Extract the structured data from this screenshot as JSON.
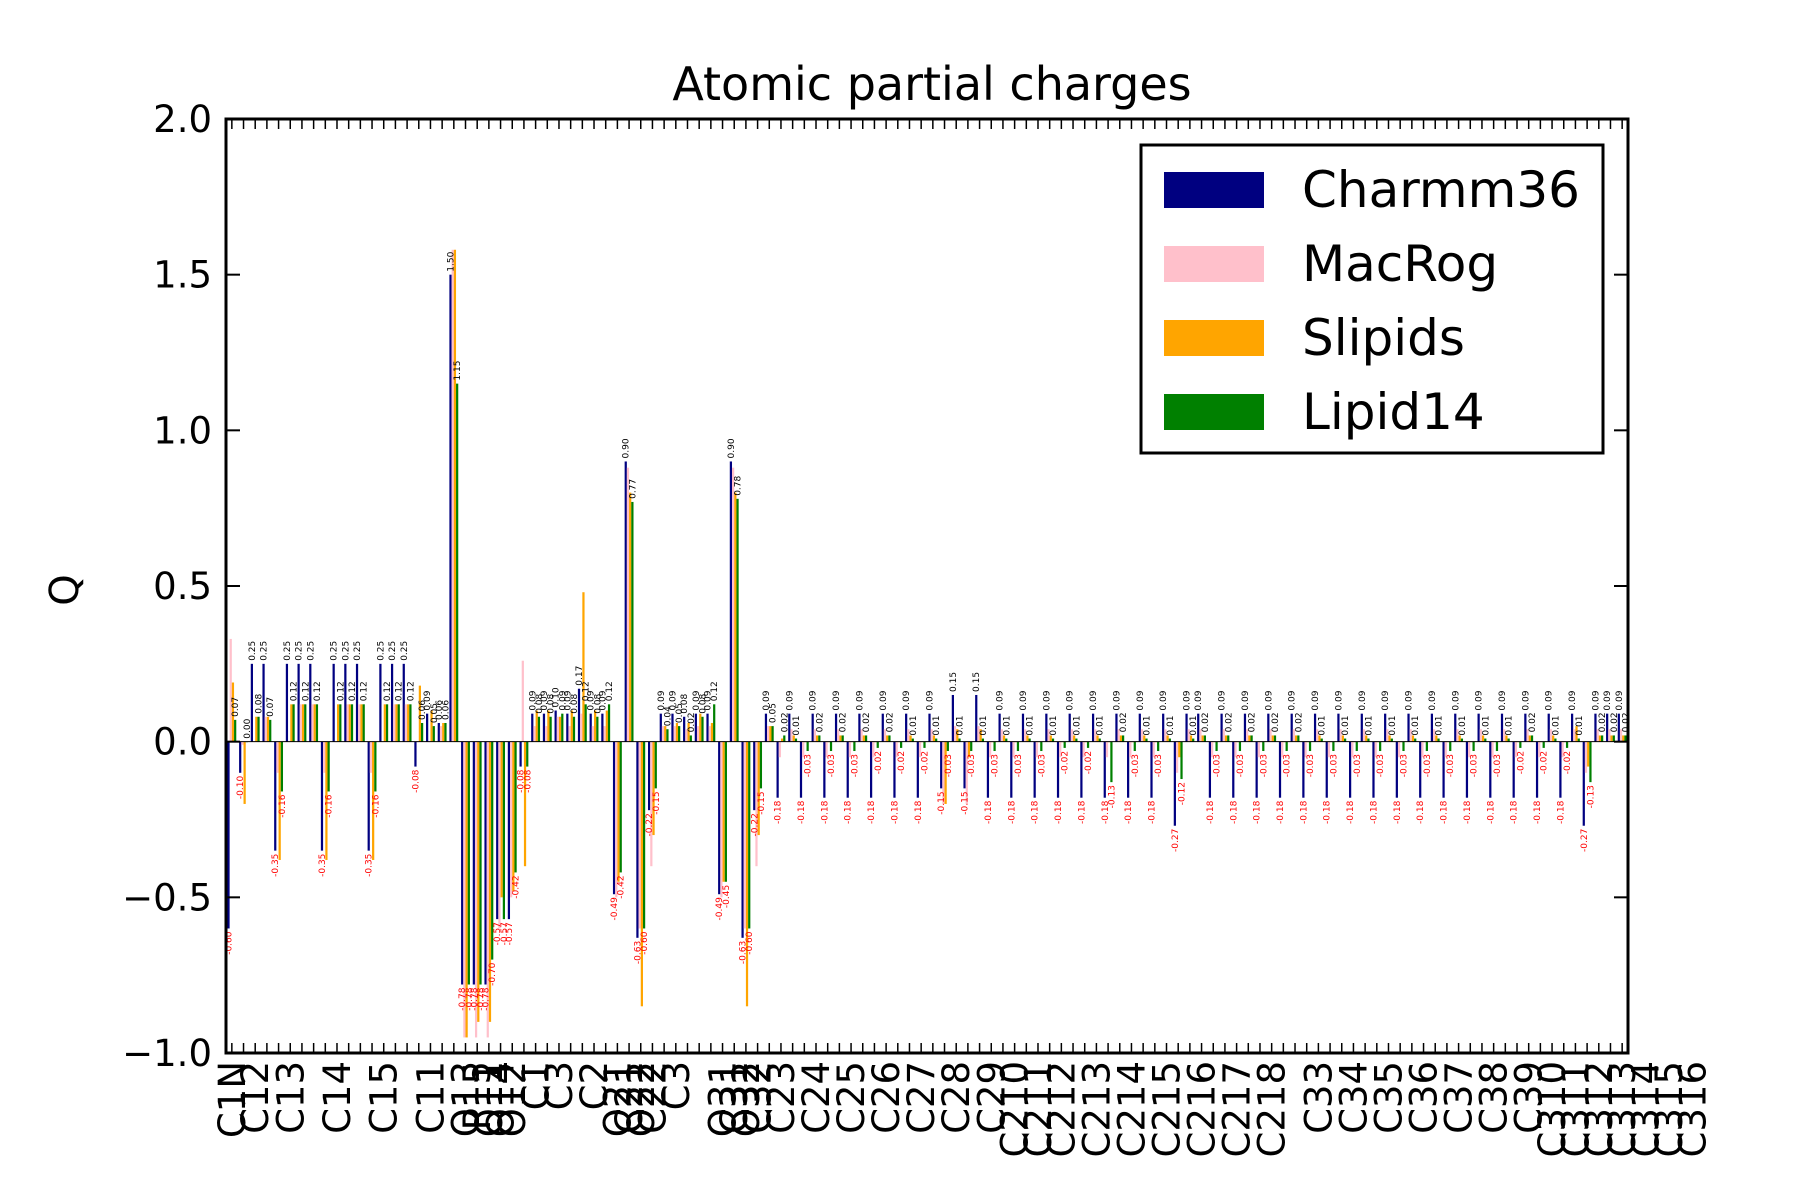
{
  "chart_data": {
    "type": "bar",
    "title": "Atomic partial charges",
    "xlabel": "",
    "ylabel": "Q",
    "ylim": [
      -1.0,
      2.0
    ],
    "yticks": [
      -1.0,
      -0.5,
      0.0,
      0.5,
      1.0,
      1.5,
      2.0
    ],
    "ytick_labels": [
      "−1.0",
      "−0.5",
      "0.0",
      "0.5",
      "1.0",
      "1.5",
      "2.0"
    ],
    "legend_position": "top-right",
    "grid": false,
    "series": [
      {
        "name": "Charmm36",
        "color": "#000080",
        "values": [
          -0.6,
          -0.1,
          0.25,
          0.25,
          -0.35,
          0.25,
          0.25,
          0.25,
          -0.35,
          0.25,
          0.25,
          0.25,
          -0.35,
          0.25,
          0.25,
          0.25,
          -0.08,
          0.09,
          0.06,
          1.5,
          -0.78,
          -0.78,
          -0.78,
          -0.57,
          -0.57,
          -0.08,
          0.09,
          0.09,
          0.1,
          0.09,
          0.17,
          0.09,
          0.09,
          -0.49,
          0.9,
          -0.63,
          -0.22,
          0.09,
          0.09,
          0.08,
          0.09,
          0.09,
          -0.49,
          0.9,
          -0.63,
          -0.22,
          0.09,
          -0.18,
          0.09,
          -0.18,
          0.09,
          -0.18,
          0.09,
          -0.18,
          0.09,
          -0.18,
          0.09,
          -0.18,
          0.09,
          -0.18,
          0.09,
          -0.15,
          0.15,
          -0.15,
          0.15,
          -0.18,
          0.09,
          -0.18,
          0.09,
          -0.18,
          0.09,
          -0.18,
          0.09,
          -0.18,
          0.09,
          -0.18,
          0.09,
          -0.18,
          0.09,
          -0.18,
          0.09,
          -0.27,
          0.09,
          0.09,
          -0.18,
          0.09,
          -0.18,
          0.09,
          -0.18,
          0.09,
          -0.18,
          0.09,
          -0.18,
          0.09,
          -0.18,
          0.09,
          -0.18,
          0.09,
          -0.18,
          0.09,
          -0.18,
          0.09,
          -0.18,
          0.09,
          -0.18,
          0.09,
          -0.18,
          0.09,
          -0.18,
          0.09,
          -0.18,
          0.09,
          -0.18,
          0.09,
          -0.18,
          0.09,
          -0.27,
          0.09,
          0.09,
          0.09
        ]
      },
      {
        "name": "MacRog",
        "color": "#ffc0cb",
        "values": [
          0.33,
          -0.01,
          0.0,
          0.08,
          -0.1,
          0.0,
          0.12,
          0.12,
          -0.1,
          0.0,
          0.12,
          0.12,
          -0.1,
          0.0,
          0.12,
          0.12,
          0.0,
          0.0,
          0.05,
          1.58,
          -0.95,
          -0.95,
          -0.95,
          -0.6,
          -0.5,
          0.26,
          0.05,
          0.05,
          0.08,
          0.05,
          0.09,
          0.05,
          0.05,
          -0.5,
          0.88,
          -0.6,
          -0.4,
          0.05,
          0.05,
          0.04,
          0.05,
          0.05,
          -0.5,
          0.88,
          -0.6,
          -0.4,
          0.05,
          -0.05,
          0.04,
          -0.05,
          0.04,
          -0.05,
          0.04,
          -0.05,
          0.04,
          -0.05,
          0.04,
          -0.05,
          0.04,
          -0.05,
          0.04,
          -0.2,
          0.05,
          -0.2,
          0.05,
          -0.05,
          0.04,
          -0.05,
          0.04,
          -0.05,
          0.04,
          -0.05,
          0.04,
          -0.05,
          0.04,
          -0.05,
          0.04,
          -0.05,
          0.04,
          -0.05,
          0.04,
          -0.1,
          0.04,
          0.04,
          -0.05,
          0.04,
          -0.05,
          0.04,
          -0.05,
          0.04,
          -0.05,
          0.04,
          -0.05,
          0.04,
          -0.05,
          0.04,
          -0.05,
          0.04,
          -0.05,
          0.04,
          -0.05,
          0.04,
          -0.05,
          0.04,
          -0.05,
          0.04,
          -0.05,
          0.04,
          -0.05,
          0.04,
          -0.05,
          0.04,
          -0.05,
          0.04,
          -0.05,
          0.04,
          -0.1,
          0.04,
          0.04,
          0.04
        ]
      },
      {
        "name": "Slipids",
        "color": "#ffa500",
        "values": [
          0.19,
          -0.2,
          0.08,
          0.08,
          -0.38,
          0.12,
          0.12,
          0.12,
          -0.38,
          0.12,
          0.12,
          0.12,
          -0.38,
          0.12,
          0.12,
          0.12,
          0.18,
          0.1,
          0.06,
          1.58,
          -0.95,
          -0.9,
          -0.9,
          -0.5,
          -0.48,
          -0.4,
          0.1,
          0.1,
          0.08,
          0.1,
          0.48,
          0.1,
          0.1,
          -0.45,
          0.8,
          -0.85,
          -0.3,
          0.05,
          0.06,
          0.06,
          0.09,
          0.06,
          -0.45,
          0.8,
          -0.85,
          -0.3,
          0.05,
          0.01,
          0.02,
          0.0,
          0.02,
          0.0,
          0.02,
          0.0,
          0.02,
          0.0,
          0.02,
          0.0,
          0.02,
          0.0,
          0.02,
          -0.2,
          0.04,
          -0.05,
          0.04,
          0.0,
          0.02,
          0.0,
          0.02,
          0.0,
          0.02,
          0.0,
          0.02,
          0.0,
          0.02,
          0.0,
          0.02,
          0.0,
          0.02,
          0.0,
          0.02,
          -0.05,
          0.02,
          0.02,
          0.0,
          0.02,
          0.0,
          0.02,
          0.0,
          0.02,
          0.0,
          0.02,
          0.0,
          0.02,
          0.0,
          0.02,
          0.0,
          0.02,
          0.0,
          0.02,
          0.0,
          0.02,
          0.0,
          0.02,
          0.0,
          0.02,
          0.0,
          0.02,
          0.0,
          0.02,
          0.0,
          0.02,
          0.0,
          0.02,
          0.0,
          0.05,
          -0.08,
          0.02,
          0.02,
          0.02
        ]
      },
      {
        "name": "Lipid14",
        "color": "#008000",
        "values": [
          0.07,
          0.0,
          0.08,
          0.07,
          -0.16,
          0.12,
          0.12,
          0.12,
          -0.16,
          0.12,
          0.12,
          0.12,
          -0.16,
          0.12,
          0.12,
          0.12,
          0.06,
          0.05,
          0.06,
          1.15,
          -0.78,
          -0.78,
          -0.7,
          -0.57,
          -0.42,
          -0.08,
          0.08,
          0.08,
          0.09,
          0.08,
          0.12,
          0.08,
          0.12,
          -0.42,
          0.77,
          -0.6,
          -0.15,
          0.04,
          0.05,
          0.02,
          0.08,
          0.12,
          -0.45,
          0.78,
          -0.6,
          -0.15,
          0.05,
          0.02,
          0.01,
          -0.03,
          0.02,
          -0.03,
          0.02,
          -0.03,
          0.02,
          -0.02,
          0.02,
          -0.02,
          0.01,
          -0.02,
          0.01,
          -0.03,
          0.01,
          -0.03,
          0.01,
          -0.03,
          0.01,
          -0.03,
          0.01,
          -0.03,
          0.01,
          -0.02,
          0.01,
          -0.02,
          0.01,
          -0.13,
          0.02,
          -0.03,
          0.01,
          -0.03,
          0.01,
          -0.12,
          0.01,
          0.02,
          -0.03,
          0.02,
          -0.03,
          0.02,
          -0.03,
          0.02,
          -0.03,
          0.02,
          -0.03,
          0.01,
          -0.03,
          0.01,
          -0.03,
          0.01,
          -0.03,
          0.01,
          -0.03,
          0.01,
          -0.03,
          0.01,
          -0.03,
          0.01,
          -0.03,
          0.01,
          -0.03,
          0.01,
          -0.02,
          0.02,
          -0.02,
          0.01,
          -0.02,
          0.01,
          -0.13,
          0.02,
          0.02,
          0.02
        ]
      }
    ],
    "tick_labels": [
      {
        "label": "C1N",
        "index": 0
      },
      {
        "label": "C12",
        "index": 2
      },
      {
        "label": "C13",
        "index": 5
      },
      {
        "label": "C14",
        "index": 9
      },
      {
        "label": "C15",
        "index": 13
      },
      {
        "label": "C11",
        "index": 17
      },
      {
        "label": "O13",
        "index": 20
      },
      {
        "label": "P15",
        "index": 21
      },
      {
        "label": "O11",
        "index": 22
      },
      {
        "label": "O14",
        "index": 23
      },
      {
        "label": "O12",
        "index": 24
      },
      {
        "label": "C1",
        "index": 26
      },
      {
        "label": "C3",
        "index": 28
      },
      {
        "label": "C2",
        "index": 31
      },
      {
        "label": "O21",
        "index": 33
      },
      {
        "label": "C21",
        "index": 34
      },
      {
        "label": "O22",
        "index": 35
      },
      {
        "label": "C22",
        "index": 36
      },
      {
        "label": "C3",
        "index": 38
      },
      {
        "label": "O31",
        "index": 42
      },
      {
        "label": "C31",
        "index": 43
      },
      {
        "label": "O32",
        "index": 44
      },
      {
        "label": "C32",
        "index": 45
      },
      {
        "label": "C23",
        "index": 47
      },
      {
        "label": "C24",
        "index": 50
      },
      {
        "label": "C25",
        "index": 53
      },
      {
        "label": "C26",
        "index": 56
      },
      {
        "label": "C27",
        "index": 59
      },
      {
        "label": "C28",
        "index": 62
      },
      {
        "label": "C29",
        "index": 65
      },
      {
        "label": "C210",
        "index": 67
      },
      {
        "label": "C211",
        "index": 69
      },
      {
        "label": "C212",
        "index": 71
      },
      {
        "label": "C213",
        "index": 74
      },
      {
        "label": "C214",
        "index": 77
      },
      {
        "label": "C215",
        "index": 80
      },
      {
        "label": "C216",
        "index": 83
      },
      {
        "label": "C217",
        "index": 86
      },
      {
        "label": "C218",
        "index": 89
      },
      {
        "label": "C33",
        "index": 93
      },
      {
        "label": "C34",
        "index": 96
      },
      {
        "label": "C35",
        "index": 99
      },
      {
        "label": "C36",
        "index": 102
      },
      {
        "label": "C37",
        "index": 105
      },
      {
        "label": "C38",
        "index": 108
      },
      {
        "label": "C39",
        "index": 111
      },
      {
        "label": "C310",
        "index": 113
      },
      {
        "label": "C311",
        "index": 115
      },
      {
        "label": "C312",
        "index": 117
      },
      {
        "label": "C313",
        "index": 119
      },
      {
        "label": "C314",
        "index": 121
      },
      {
        "label": "C315",
        "index": 123
      },
      {
        "label": "C316",
        "index": 125
      }
    ]
  }
}
